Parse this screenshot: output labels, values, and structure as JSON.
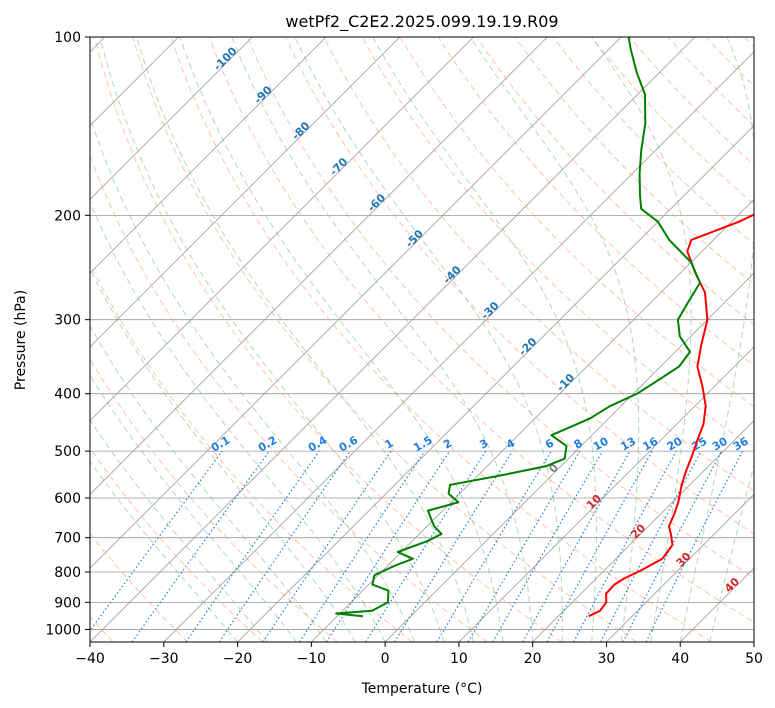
{
  "chart_data": {
    "type": "line",
    "title": "wetPf2_C2E2.2025.099.19.19.R09",
    "xlabel": "Temperature (°C)",
    "ylabel": "Pressure (hPa)",
    "xlim": [
      -40,
      50
    ],
    "ylim": [
      1050,
      100
    ],
    "y_scale": "log",
    "grid": true,
    "x_ticks": [
      -40,
      -30,
      -20,
      -10,
      0,
      10,
      20,
      30,
      40,
      50
    ],
    "x_tick_labels": [
      "−40",
      "−30",
      "−20",
      "−10",
      "0",
      "10",
      "20",
      "30",
      "40",
      "50"
    ],
    "y_ticks": [
      100,
      200,
      300,
      400,
      500,
      600,
      700,
      800,
      900,
      1000
    ],
    "y_tick_labels": [
      "100",
      "200",
      "300",
      "400",
      "500",
      "600",
      "700",
      "800",
      "900",
      "1000"
    ],
    "series": [
      {
        "color": "#ff0000",
        "points": [
          [
            24.1,
            950
          ],
          [
            24.9,
            930
          ],
          [
            24.6,
            900
          ],
          [
            23.4,
            870
          ],
          [
            23.3,
            840
          ],
          [
            23.8,
            820
          ],
          [
            25.0,
            795
          ],
          [
            26.3,
            760
          ],
          [
            25.8,
            720
          ],
          [
            24.1,
            690
          ],
          [
            22.8,
            670
          ],
          [
            21.9,
            640
          ],
          [
            20.8,
            610
          ],
          [
            18.9,
            570
          ],
          [
            17.6,
            540
          ],
          [
            16.4,
            510
          ],
          [
            15.0,
            480
          ],
          [
            13.6,
            450
          ],
          [
            11.5,
            420
          ],
          [
            8.5,
            390
          ],
          [
            5.0,
            360
          ],
          [
            2.5,
            330
          ],
          [
            0.0,
            300
          ],
          [
            -4.0,
            270
          ],
          [
            -8.0,
            250
          ],
          [
            -12.0,
            230
          ],
          [
            -13.0,
            220
          ],
          [
            -9.0,
            205
          ],
          [
            -6.0,
            190
          ],
          [
            -5.5,
            175
          ],
          [
            -5.0,
            160
          ],
          [
            -4.5,
            145
          ],
          [
            -4.0,
            130
          ],
          [
            -4.5,
            115
          ],
          [
            -5.0,
            108
          ],
          [
            -5.0,
            100
          ]
        ]
      },
      {
        "color": "#008000",
        "points": [
          [
            -6.5,
            950
          ],
          [
            -10.5,
            940
          ],
          [
            -6.0,
            930
          ],
          [
            -5.0,
            900
          ],
          [
            -6.5,
            860
          ],
          [
            -9.5,
            840
          ],
          [
            -10.5,
            810
          ],
          [
            -9.0,
            780
          ],
          [
            -7.5,
            760
          ],
          [
            -10.5,
            740
          ],
          [
            -8.0,
            710
          ],
          [
            -7.0,
            690
          ],
          [
            -9.0,
            670
          ],
          [
            -10.5,
            650
          ],
          [
            -12.0,
            630
          ],
          [
            -9.0,
            610
          ],
          [
            -11.5,
            590
          ],
          [
            -12.5,
            570
          ],
          [
            -7.0,
            550
          ],
          [
            -2.0,
            530
          ],
          [
            -0.5,
            515
          ],
          [
            -2.0,
            490
          ],
          [
            -5.5,
            470
          ],
          [
            -4.0,
            455
          ],
          [
            -2.5,
            440
          ],
          [
            -1.5,
            420
          ],
          [
            0.5,
            400
          ],
          [
            1.5,
            380
          ],
          [
            2.5,
            360
          ],
          [
            2.0,
            340
          ],
          [
            -1.5,
            320
          ],
          [
            -4.0,
            300
          ],
          [
            -5.0,
            280
          ],
          [
            -6.0,
            260
          ],
          [
            -10.0,
            240
          ],
          [
            -16.0,
            220
          ],
          [
            -20.0,
            205
          ],
          [
            -24.0,
            195
          ],
          [
            -26.0,
            185
          ],
          [
            -29.0,
            170
          ],
          [
            -32.0,
            155
          ],
          [
            -35.0,
            140
          ],
          [
            -39.0,
            125
          ],
          [
            -43.0,
            115
          ],
          [
            -47.0,
            105
          ],
          [
            -49.0,
            100
          ]
        ]
      }
    ],
    "mixing_ratio_labels": [
      "0.1",
      "0.2",
      "0.4",
      "0.6",
      "1",
      "1.5",
      "2",
      "3",
      "4",
      "6",
      "8",
      "10",
      "13",
      "16",
      "20",
      "25",
      "30",
      "36"
    ],
    "dry_adiabat_labels": [
      "-100",
      "-90",
      "-80",
      "-70",
      "-60",
      "-50",
      "-40",
      "-30",
      "-20",
      "-10"
    ],
    "moist_adiabat_labels": [
      "0",
      "10",
      "20",
      "30",
      "40"
    ],
    "colors": {
      "temperature": "#ff0000",
      "dewpoint": "#008000",
      "dry_adiabat": "#ff9b7b",
      "moist_adiabat": "#7fbf7f",
      "mixing_ratio": "#1e7fe0",
      "isotherm": "#9a9a9a",
      "dry_adiabat_label": "#1f77b4",
      "moist_adiabat_label": "#d62728",
      "frozen_label": "#7f7f7f"
    }
  }
}
